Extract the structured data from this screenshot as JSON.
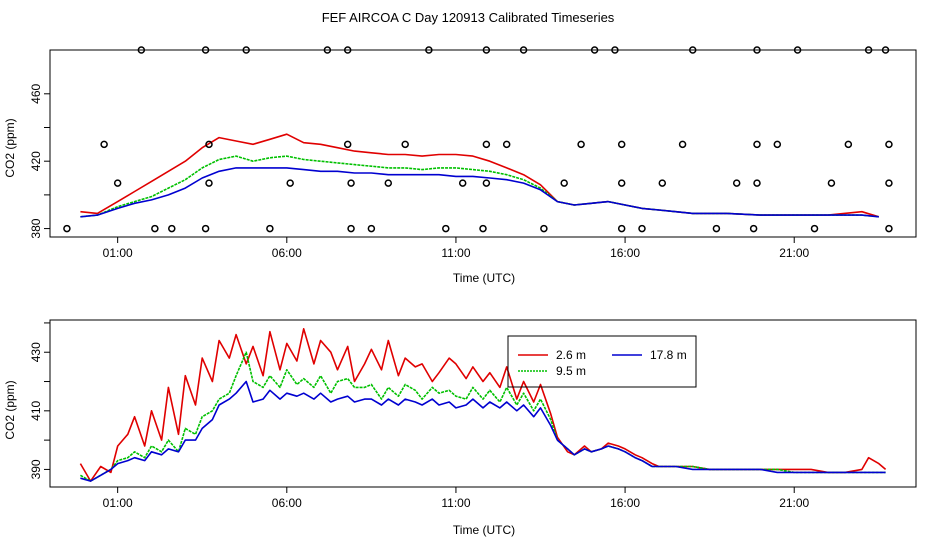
{
  "title": "FEF AIRCOA C  Day 120913  Calibrated Timeseries",
  "colors": {
    "2.6 m": "#e00000",
    "9.5 m": "#00c000",
    "17.8 m": "#0000d0",
    "axis": "#000000"
  },
  "chart_data": [
    {
      "type": "line",
      "xlabel": "Time (UTC)",
      "ylabel": "CO2 (ppm)",
      "xticks": [
        "01:00",
        "06:00",
        "11:00",
        "16:00",
        "21:00"
      ],
      "xtick_hours": [
        1,
        6,
        11,
        16,
        21
      ],
      "xlim": [
        -1.0,
        24.6
      ],
      "yticks": [
        380,
        420,
        460
      ],
      "yticks_extra": [
        400,
        440
      ],
      "ylim": [
        375,
        486
      ],
      "legend": "none",
      "series_line": [
        {
          "name": "2.6 m",
          "x": [
            -0.1,
            0.4,
            1.0,
            1.5,
            2.0,
            2.5,
            3.0,
            3.5,
            4.0,
            4.5,
            5.0,
            5.5,
            6.0,
            6.5,
            7.0,
            7.5,
            8.0,
            8.5,
            9.0,
            9.5,
            10.0,
            10.5,
            11.0,
            11.5,
            12.0,
            12.5,
            13.0,
            13.5,
            14.0,
            14.5,
            15.0,
            15.5,
            16.0,
            16.5,
            17.0,
            17.5,
            18.0,
            19.0,
            20.0,
            21.0,
            22.0,
            23.0,
            23.5
          ],
          "y": [
            390,
            389,
            396,
            402,
            408,
            414,
            420,
            428,
            434,
            432,
            430,
            433,
            436,
            431,
            430,
            428,
            426,
            425,
            424,
            424,
            423,
            424,
            424,
            423,
            420,
            416,
            412,
            406,
            396,
            394,
            395,
            396,
            394,
            392,
            391,
            390,
            389,
            389,
            388,
            388,
            388,
            390,
            387
          ]
        },
        {
          "name": "9.5 m",
          "x": [
            -0.1,
            0.4,
            1.0,
            1.5,
            2.0,
            2.5,
            3.0,
            3.5,
            4.0,
            4.5,
            5.0,
            5.5,
            6.0,
            6.5,
            7.0,
            7.5,
            8.0,
            8.5,
            9.0,
            9.5,
            10.0,
            10.5,
            11.0,
            11.5,
            12.0,
            12.5,
            13.0,
            13.5,
            14.0,
            14.5,
            15.0,
            15.5,
            16.0,
            16.5,
            17.0,
            17.5,
            18.0,
            19.0,
            20.0,
            21.0,
            22.0,
            23.0,
            23.5
          ],
          "y": [
            387,
            388,
            393,
            396,
            399,
            404,
            409,
            416,
            421,
            423,
            420,
            422,
            423,
            421,
            420,
            419,
            418,
            417,
            416,
            416,
            415,
            416,
            416,
            415,
            414,
            412,
            409,
            404,
            396,
            394,
            395,
            396,
            394,
            392,
            391,
            390,
            389,
            389,
            388,
            388,
            388,
            388,
            387
          ]
        },
        {
          "name": "17.8 m",
          "x": [
            -0.1,
            0.4,
            1.0,
            1.5,
            2.0,
            2.5,
            3.0,
            3.5,
            4.0,
            4.5,
            5.0,
            5.5,
            6.0,
            6.5,
            7.0,
            7.5,
            8.0,
            8.5,
            9.0,
            9.5,
            10.0,
            10.5,
            11.0,
            11.5,
            12.0,
            12.5,
            13.0,
            13.5,
            14.0,
            14.5,
            15.0,
            15.5,
            16.0,
            16.5,
            17.0,
            17.5,
            18.0,
            19.0,
            20.0,
            21.0,
            22.0,
            23.0,
            23.5
          ],
          "y": [
            387,
            388,
            392,
            395,
            397,
            400,
            404,
            410,
            414,
            416,
            416,
            416,
            416,
            415,
            414,
            414,
            413,
            413,
            412,
            412,
            412,
            412,
            411,
            411,
            410,
            409,
            407,
            403,
            396,
            394,
            395,
            396,
            394,
            392,
            391,
            390,
            389,
            389,
            388,
            388,
            388,
            388,
            387
          ]
        }
      ],
      "points": {
        "x": [
          1.7,
          3.6,
          4.8,
          7.2,
          7.8,
          10.2,
          11.9,
          13.0,
          15.1,
          15.7,
          18.0,
          19.9,
          21.1,
          23.2,
          23.7,
          -0.5,
          2.6,
          3.6,
          5.5,
          7.9,
          8.5,
          10.7,
          11.8,
          13.6,
          15.9,
          16.5,
          18.7,
          19.8,
          21.6,
          23.8,
          1.0,
          3.7,
          6.1,
          7.9,
          9.0,
          11.2,
          11.9,
          14.2,
          15.9,
          17.1,
          19.3,
          19.9,
          22.1,
          23.8,
          0.6,
          3.7,
          7.8,
          9.5,
          11.9,
          12.5,
          14.7,
          15.9,
          17.7,
          19.9,
          20.5,
          22.6,
          23.8,
          2.1
        ],
        "y": [
          486,
          486,
          486,
          486,
          486,
          486,
          486,
          486,
          486,
          486,
          486,
          486,
          486,
          486,
          486,
          380,
          380,
          380,
          380,
          380,
          380,
          380,
          380,
          380,
          380,
          380,
          380,
          380,
          380,
          380,
          407,
          407,
          407,
          407,
          407,
          407,
          407,
          407,
          407,
          407,
          407,
          407,
          407,
          407,
          430,
          430,
          430,
          430,
          430,
          430,
          430,
          430,
          430,
          430,
          430,
          430,
          430,
          380
        ]
      }
    },
    {
      "type": "line",
      "xlabel": "Time (UTC)",
      "ylabel": "CO2 (ppm)",
      "xticks": [
        "01:00",
        "06:00",
        "11:00",
        "16:00",
        "21:00"
      ],
      "xtick_hours": [
        1,
        6,
        11,
        16,
        21
      ],
      "xlim": [
        -1.0,
        24.6
      ],
      "yticks": [
        390,
        410,
        430
      ],
      "yticks_extra": [
        400,
        420,
        440
      ],
      "ylim": [
        384,
        441
      ],
      "legend": "top-right",
      "series": [
        {
          "name": "2.6 m",
          "x": [
            -0.1,
            0.2,
            0.5,
            0.8,
            1.0,
            1.3,
            1.5,
            1.8,
            2.0,
            2.3,
            2.5,
            2.8,
            3.0,
            3.3,
            3.5,
            3.8,
            4.0,
            4.3,
            4.5,
            4.8,
            5.0,
            5.3,
            5.5,
            5.8,
            6.0,
            6.3,
            6.5,
            6.8,
            7.0,
            7.3,
            7.5,
            7.8,
            8.0,
            8.3,
            8.5,
            8.8,
            9.0,
            9.3,
            9.5,
            9.8,
            10.0,
            10.3,
            10.5,
            10.8,
            11.0,
            11.3,
            11.5,
            11.8,
            12.0,
            12.3,
            12.5,
            12.8,
            13.0,
            13.3,
            13.5,
            13.8,
            14.0,
            14.3,
            14.5,
            14.8,
            15.0,
            15.3,
            15.5,
            15.8,
            16.0,
            16.3,
            16.5,
            16.8,
            17.0,
            17.5,
            18.0,
            18.5,
            19.0,
            19.5,
            20.0,
            20.5,
            21.0,
            21.5,
            22.0,
            22.5,
            23.0,
            23.2,
            23.5,
            23.7
          ],
          "y": [
            392,
            386,
            391,
            389,
            398,
            402,
            408,
            398,
            410,
            400,
            418,
            402,
            422,
            412,
            428,
            420,
            434,
            428,
            436,
            426,
            432,
            422,
            437,
            424,
            433,
            427,
            438,
            426,
            434,
            430,
            424,
            432,
            420,
            426,
            431,
            424,
            434,
            422,
            428,
            425,
            426,
            420,
            423,
            428,
            426,
            421,
            425,
            420,
            423,
            418,
            425,
            414,
            420,
            413,
            419,
            409,
            401,
            396,
            395,
            398,
            396,
            397,
            399,
            398,
            397,
            395,
            394,
            392,
            391,
            391,
            391,
            390,
            390,
            390,
            390,
            390,
            390,
            390,
            389,
            389,
            390,
            394,
            392,
            390
          ]
        },
        {
          "name": "9.5 m",
          "x": [
            -0.1,
            0.2,
            0.5,
            0.8,
            1.0,
            1.3,
            1.5,
            1.8,
            2.0,
            2.3,
            2.5,
            2.8,
            3.0,
            3.3,
            3.5,
            3.8,
            4.0,
            4.3,
            4.5,
            4.8,
            5.0,
            5.3,
            5.5,
            5.8,
            6.0,
            6.3,
            6.5,
            6.8,
            7.0,
            7.3,
            7.5,
            7.8,
            8.0,
            8.3,
            8.5,
            8.8,
            9.0,
            9.3,
            9.5,
            9.8,
            10.0,
            10.3,
            10.5,
            10.8,
            11.0,
            11.3,
            11.5,
            11.8,
            12.0,
            12.3,
            12.5,
            12.8,
            13.0,
            13.3,
            13.5,
            13.8,
            14.0,
            14.3,
            14.5,
            14.8,
            15.0,
            15.3,
            15.5,
            15.8,
            16.0,
            16.3,
            16.5,
            16.8,
            17.0,
            17.5,
            18.0,
            18.5,
            19.0,
            19.5,
            20.0,
            20.5,
            21.0,
            21.5,
            22.0,
            22.5,
            23.0,
            23.5,
            23.7
          ],
          "y": [
            388,
            386,
            388,
            390,
            393,
            394,
            396,
            394,
            398,
            396,
            400,
            396,
            404,
            402,
            408,
            410,
            414,
            416,
            422,
            430,
            420,
            418,
            422,
            418,
            424,
            419,
            421,
            418,
            422,
            416,
            420,
            421,
            418,
            418,
            419,
            414,
            418,
            415,
            419,
            417,
            414,
            418,
            416,
            417,
            415,
            414,
            418,
            414,
            417,
            413,
            418,
            412,
            416,
            410,
            414,
            407,
            400,
            397,
            395,
            397,
            396,
            397,
            398,
            397,
            396,
            394,
            393,
            391,
            391,
            391,
            391,
            390,
            390,
            390,
            390,
            390,
            389,
            389,
            389,
            389,
            389,
            389,
            389
          ]
        },
        {
          "name": "17.8 m",
          "x": [
            -0.1,
            0.2,
            0.5,
            0.8,
            1.0,
            1.3,
            1.5,
            1.8,
            2.0,
            2.3,
            2.5,
            2.8,
            3.0,
            3.3,
            3.5,
            3.8,
            4.0,
            4.3,
            4.5,
            4.8,
            5.0,
            5.3,
            5.5,
            5.8,
            6.0,
            6.3,
            6.5,
            6.8,
            7.0,
            7.3,
            7.5,
            7.8,
            8.0,
            8.3,
            8.5,
            8.8,
            9.0,
            9.3,
            9.5,
            9.8,
            10.0,
            10.3,
            10.5,
            10.8,
            11.0,
            11.3,
            11.5,
            11.8,
            12.0,
            12.3,
            12.5,
            12.8,
            13.0,
            13.3,
            13.5,
            13.8,
            14.0,
            14.3,
            14.5,
            14.8,
            15.0,
            15.3,
            15.5,
            15.8,
            16.0,
            16.3,
            16.5,
            16.8,
            17.0,
            17.5,
            18.0,
            18.5,
            19.0,
            19.5,
            20.0,
            20.5,
            21.0,
            21.5,
            22.0,
            22.5,
            23.0,
            23.5,
            23.7
          ],
          "y": [
            387,
            386,
            388,
            390,
            392,
            393,
            394,
            393,
            396,
            395,
            397,
            396,
            400,
            400,
            404,
            407,
            412,
            414,
            416,
            420,
            413,
            414,
            417,
            414,
            416,
            415,
            416,
            414,
            416,
            413,
            414,
            415,
            413,
            414,
            414,
            412,
            414,
            412,
            414,
            413,
            412,
            414,
            412,
            413,
            411,
            412,
            414,
            411,
            413,
            411,
            413,
            410,
            412,
            408,
            411,
            405,
            400,
            397,
            395,
            397,
            396,
            397,
            398,
            397,
            396,
            394,
            393,
            391,
            391,
            391,
            390,
            390,
            390,
            390,
            390,
            389,
            389,
            389,
            389,
            389,
            389,
            389,
            389
          ]
        }
      ]
    }
  ]
}
